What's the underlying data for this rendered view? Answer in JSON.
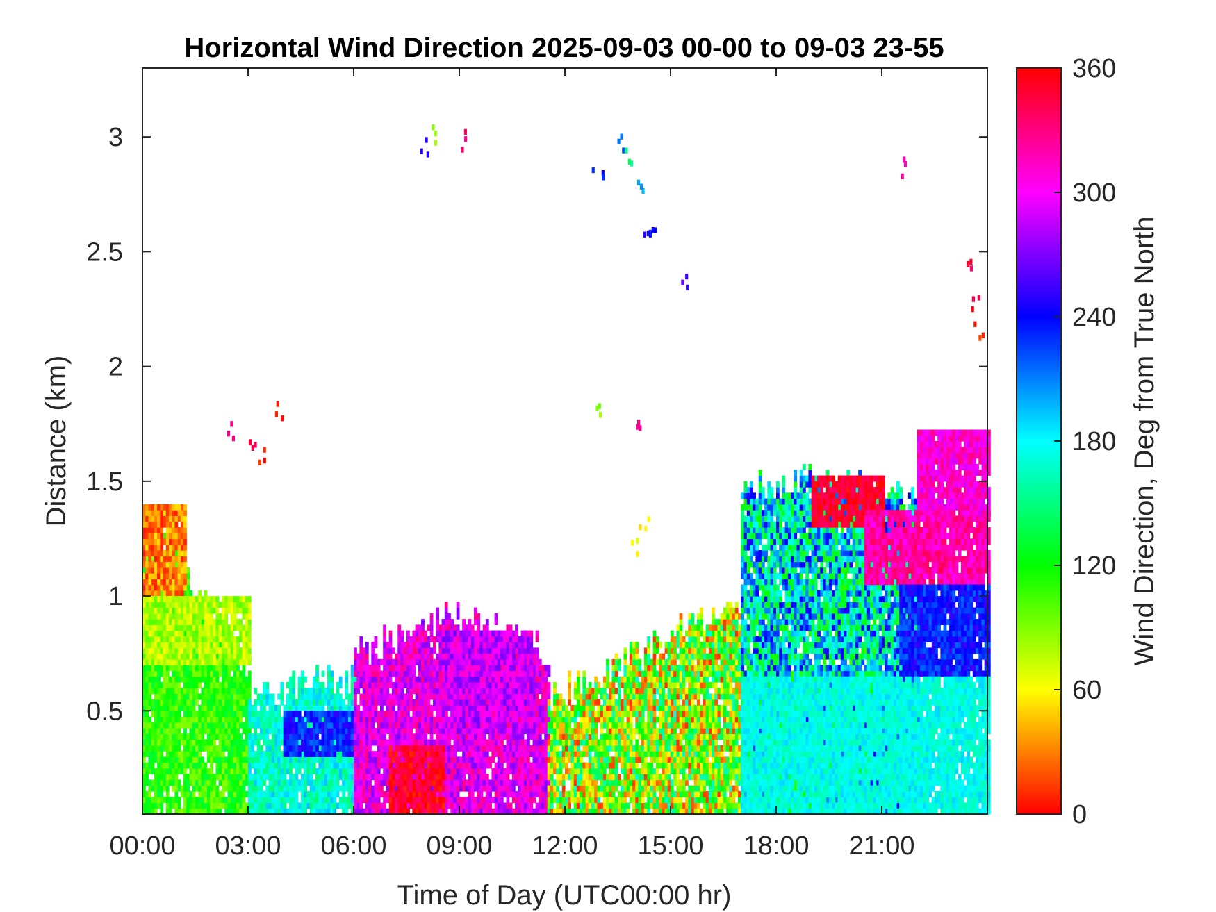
{
  "chart_data": {
    "type": "heatmap",
    "title": "Horizontal Wind Direction 2025-09-03 00-00 to 09-03 23-55",
    "xlabel": "Time of Day (UTC00:00 hr)",
    "ylabel": "Distance (km)",
    "x_ticks": [
      {
        "value": 0,
        "label": "00:00"
      },
      {
        "value": 3,
        "label": "03:00"
      },
      {
        "value": 6,
        "label": "06:00"
      },
      {
        "value": 9,
        "label": "09:00"
      },
      {
        "value": 12,
        "label": "12:00"
      },
      {
        "value": 15,
        "label": "15:00"
      },
      {
        "value": 18,
        "label": "18:00"
      },
      {
        "value": 21,
        "label": "21:00"
      }
    ],
    "y_ticks": [
      {
        "value": 0.5,
        "label": "0.5"
      },
      {
        "value": 1,
        "label": "1"
      },
      {
        "value": 1.5,
        "label": "1.5"
      },
      {
        "value": 2,
        "label": "2"
      },
      {
        "value": 2.5,
        "label": "2.5"
      },
      {
        "value": 3,
        "label": "3"
      }
    ],
    "xlim": [
      0,
      24
    ],
    "ylim": [
      0.05,
      3.3
    ],
    "grid": false,
    "colorbar": {
      "label": "Wind Direction, Deg from True North",
      "colormap": "hsv",
      "clim": [
        0,
        360
      ],
      "ticks": [
        {
          "value": 0,
          "label": "0"
        },
        {
          "value": 60,
          "label": "60"
        },
        {
          "value": 120,
          "label": "120"
        },
        {
          "value": 180,
          "label": "180"
        },
        {
          "value": 240,
          "label": "240"
        },
        {
          "value": 300,
          "label": "300"
        },
        {
          "value": 360,
          "label": "360"
        }
      ]
    },
    "cell_size": {
      "dt_hours": 0.0833,
      "dz_km": 0.025
    },
    "regions": [
      {
        "t": [
          0.0,
          3.0
        ],
        "z_top": [
          1.35,
          1.0,
          0.65
        ],
        "dir": 110,
        "spread": 25
      },
      {
        "t": [
          0.0,
          1.2
        ],
        "z": [
          1.0,
          1.38
        ],
        "dir": 30,
        "spread": 25
      },
      {
        "t": [
          0.0,
          3.0
        ],
        "z": [
          0.7,
          1.0
        ],
        "dir": 80,
        "spread": 20
      },
      {
        "t": [
          3.0,
          6.0
        ],
        "z_top": [
          0.55,
          0.6,
          0.62
        ],
        "dir": 170,
        "spread": 25
      },
      {
        "t": [
          4.0,
          6.0
        ],
        "z": [
          0.3,
          0.5
        ],
        "dir": 235,
        "spread": 20
      },
      {
        "t": [
          6.0,
          11.5
        ],
        "z_top": [
          0.75,
          0.9,
          0.75
        ],
        "dir": 300,
        "spread": 30
      },
      {
        "t": [
          7.0,
          8.5
        ],
        "z": [
          0.05,
          0.35
        ],
        "dir": 350,
        "spread": 20
      },
      {
        "t": [
          8.5,
          11.0
        ],
        "z": [
          0.4,
          0.85
        ],
        "dir": 290,
        "spread": 25
      },
      {
        "t": [
          11.5,
          17.0
        ],
        "z_top": [
          0.55,
          0.75,
          1.0
        ],
        "dir": 90,
        "spread": 80
      },
      {
        "t": [
          17.0,
          22.0
        ],
        "z_top": [
          1.45,
          1.5,
          1.4
        ],
        "dir": 180,
        "spread": 70
      },
      {
        "t": [
          19.0,
          21.0
        ],
        "z": [
          1.3,
          1.5
        ],
        "dir": 350,
        "spread": 15
      },
      {
        "t": [
          20.5,
          24.0
        ],
        "z": [
          1.05,
          1.35
        ],
        "dir": 320,
        "spread": 20
      },
      {
        "t": [
          22.0,
          24.0
        ],
        "z": [
          1.35,
          1.7
        ],
        "dir": 310,
        "spread": 20
      },
      {
        "t": [
          21.5,
          24.0
        ],
        "z": [
          0.65,
          1.05
        ],
        "dir": 235,
        "spread": 20
      },
      {
        "t": [
          17.0,
          24.0
        ],
        "z": [
          0.05,
          0.65
        ],
        "dir": 175,
        "spread": 15
      }
    ],
    "scattered_points": [
      {
        "t": 2.5,
        "z": 1.7,
        "dir": 330
      },
      {
        "t": 3.1,
        "z": 1.65,
        "dir": 340
      },
      {
        "t": 3.3,
        "z": 1.6,
        "dir": 10
      },
      {
        "t": 3.8,
        "z": 1.8,
        "dir": 0
      },
      {
        "t": 8.0,
        "z": 2.95,
        "dir": 250
      },
      {
        "t": 8.2,
        "z": 3.0,
        "dir": 90
      },
      {
        "t": 9.0,
        "z": 2.97,
        "dir": 330
      },
      {
        "t": 12.9,
        "z": 2.85,
        "dir": 235
      },
      {
        "t": 13.5,
        "z": 2.95,
        "dir": 220
      },
      {
        "t": 13.8,
        "z": 2.9,
        "dir": 150
      },
      {
        "t": 14.2,
        "z": 2.75,
        "dir": 200
      },
      {
        "t": 14.3,
        "z": 2.6,
        "dir": 240
      },
      {
        "t": 14.4,
        "z": 2.55,
        "dir": 245
      },
      {
        "t": 15.4,
        "z": 2.35,
        "dir": 255
      },
      {
        "t": 21.6,
        "z": 2.85,
        "dir": 320
      },
      {
        "t": 23.4,
        "z": 2.45,
        "dir": 340
      },
      {
        "t": 23.6,
        "z": 2.25,
        "dir": 350
      },
      {
        "t": 23.7,
        "z": 2.15,
        "dir": 10
      },
      {
        "t": 13.0,
        "z": 1.8,
        "dir": 90
      },
      {
        "t": 14.0,
        "z": 1.75,
        "dir": 330
      },
      {
        "t": 14.2,
        "z": 1.3,
        "dir": 50
      },
      {
        "t": 14.0,
        "z": 1.2,
        "dir": 60
      }
    ]
  }
}
